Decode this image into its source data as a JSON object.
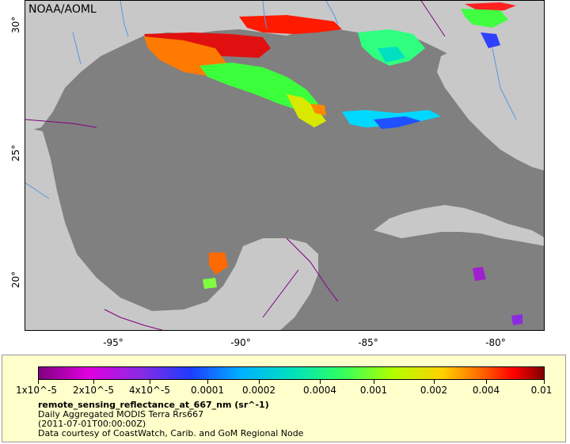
{
  "map": {
    "brand": "NOAA/AOML",
    "lat_ticks": [
      "30°",
      "25°",
      "20°"
    ],
    "lon_ticks": [
      "-95°",
      "-90°",
      "-85°",
      "-80°"
    ],
    "lat_range": [
      18,
      31
    ],
    "lon_range": [
      -98,
      -78
    ]
  },
  "legend": {
    "tick_labels": [
      "1x10^-5",
      "2x10^-5",
      "4x10^-5",
      "0.0001",
      "0.0002",
      "0.0004",
      "0.001",
      "0.002",
      "0.004",
      "0.01"
    ],
    "variable": "remote_sensing_reflectance_at_667_nm (sr^-1)",
    "line1": "Daily Aggregated MODIS Terra Rrs667",
    "line2": "(2011-07-01T00:00:00Z)",
    "line3": "Data courtesy of CoastWatch, Carib. and GoM Regional Node"
  },
  "colors": {
    "water": "#808080",
    "land": "#c8c8c8",
    "panel": "#ffffcc"
  }
}
